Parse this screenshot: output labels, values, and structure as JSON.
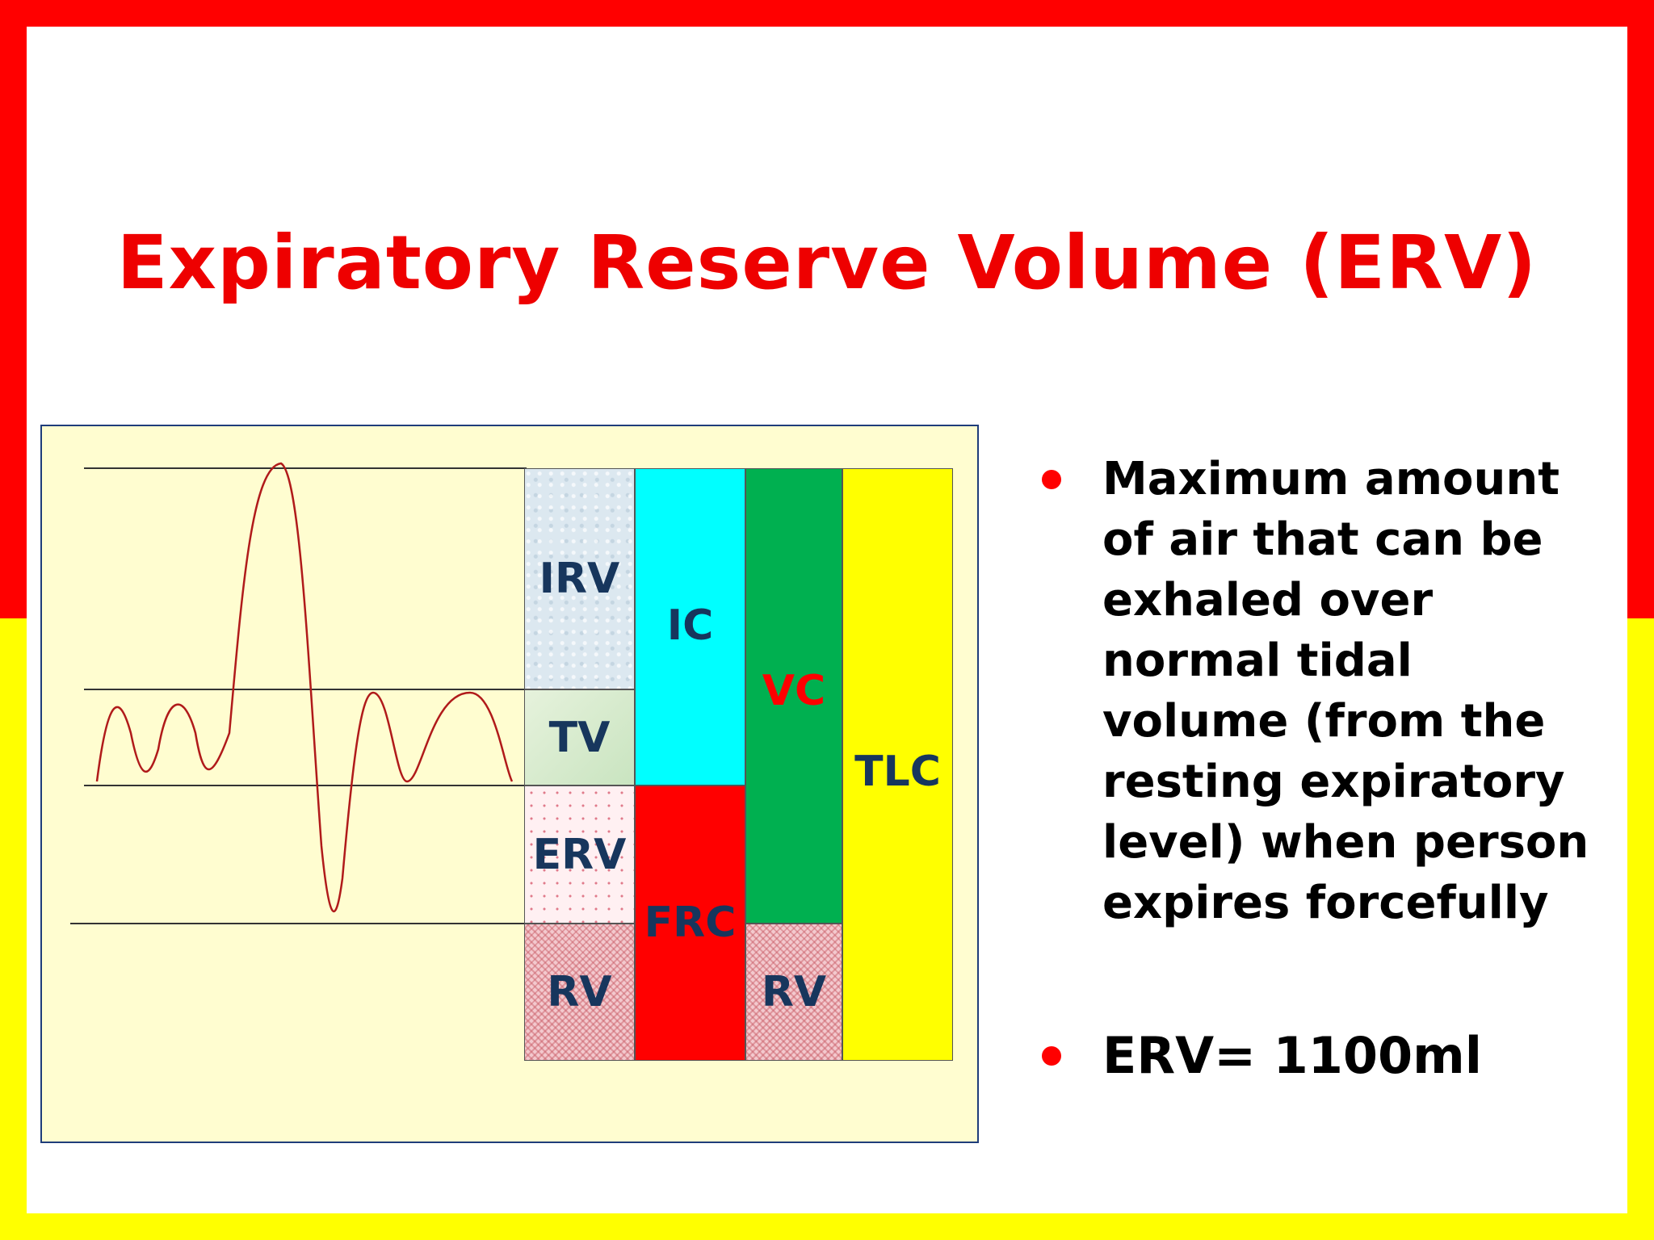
{
  "title": "Expiratory Reserve Volume (ERV)",
  "diagram": {
    "labels": {
      "irv": "IRV",
      "tv": "TV",
      "erv": "ERV",
      "rv_left": "RV",
      "ic": "IC",
      "frc": "FRC",
      "vc": "VC",
      "rv_right": "RV",
      "tlc": "TLC"
    },
    "colors": {
      "ic": "#00ffff",
      "frc": "#ff0000",
      "vc": "#00b050",
      "tlc": "#ffff00",
      "vc_label": "#ff0000",
      "label": "#17365d",
      "trace": "#b01a1a"
    }
  },
  "bullets": [
    {
      "text": "Maximum amount of air that can be exhaled over normal tidal volume (from the resting expiratory level) when person expires forcefully"
    },
    {
      "text": "ERV= 1100ml"
    }
  ]
}
